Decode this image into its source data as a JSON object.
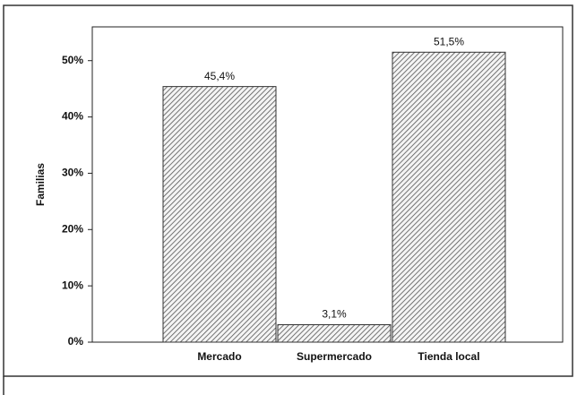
{
  "chart_data": {
    "type": "bar",
    "y_label": "Familias",
    "categories": [
      "Mercado",
      "Supermercado",
      "Tienda local"
    ],
    "values": [
      45.4,
      3.1,
      51.5
    ],
    "value_labels": [
      "45,4%",
      "3,1%",
      "51,5%"
    ],
    "color": "#555555",
    "ylim": [
      0,
      56
    ],
    "yticks": [
      {
        "value": 0,
        "label": "0%"
      },
      {
        "value": 10,
        "label": "10%"
      },
      {
        "value": 20,
        "label": "20%"
      },
      {
        "value": 30,
        "label": "30%"
      },
      {
        "value": 40,
        "label": "40%"
      },
      {
        "value": 50,
        "label": "50%"
      }
    ],
    "grid": false
  }
}
